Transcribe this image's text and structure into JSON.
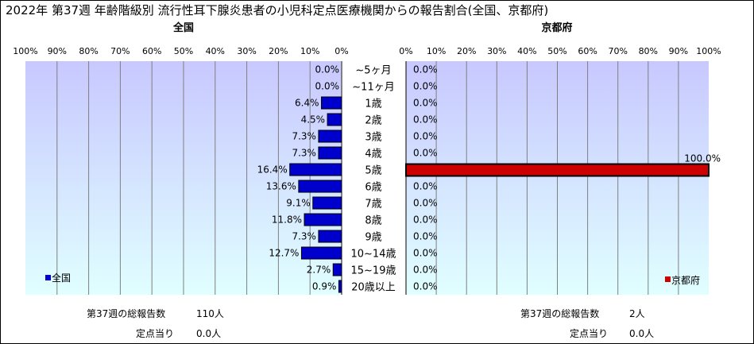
{
  "title": "2022年 第37週 年齢階級別 流行性耳下腺炎患者の小児科定点医療機関からの報告割合(全国、京都府)",
  "colors": {
    "national": "#0000CC",
    "kyoto": "#CC0000",
    "grid": "#7F7F7F"
  },
  "chart_data": [
    {
      "type": "bar",
      "title": "全国",
      "orientation": "horizontal",
      "direction": "right-to-left",
      "categories": [
        "~5ヶ月",
        "~11ヶ月",
        "1歳",
        "2歳",
        "3歳",
        "4歳",
        "5歳",
        "6歳",
        "7歳",
        "8歳",
        "9歳",
        "10~14歳",
        "15~19歳",
        "20歳以上"
      ],
      "series": [
        {
          "name": "全国",
          "values": [
            0.0,
            0.0,
            6.4,
            4.5,
            7.3,
            7.3,
            16.4,
            13.6,
            9.1,
            11.8,
            7.3,
            12.7,
            2.7,
            0.9
          ]
        }
      ],
      "data_labels": [
        "0.0%",
        "0.0%",
        "6.4%",
        "4.5%",
        "7.3%",
        "7.3%",
        "16.4%",
        "13.6%",
        "9.1%",
        "11.8%",
        "7.3%",
        "12.7%",
        "2.7%",
        "0.9%"
      ],
      "xlim": [
        0,
        100
      ],
      "x_ticks": [
        "100%",
        "90%",
        "80%",
        "70%",
        "60%",
        "50%",
        "40%",
        "30%",
        "20%",
        "10%",
        "0%"
      ],
      "grid": true,
      "legend": "bottom-left"
    },
    {
      "type": "bar",
      "title": "京都府",
      "orientation": "horizontal",
      "direction": "left-to-right",
      "categories": [
        "~5ヶ月",
        "~11ヶ月",
        "1歳",
        "2歳",
        "3歳",
        "4歳",
        "5歳",
        "6歳",
        "7歳",
        "8歳",
        "9歳",
        "10~14歳",
        "15~19歳",
        "20歳以上"
      ],
      "series": [
        {
          "name": "京都府",
          "values": [
            0,
            0,
            0,
            0,
            0,
            0,
            100,
            0,
            0,
            0,
            0,
            0,
            0,
            0
          ]
        }
      ],
      "data_labels": [
        "0.0%",
        "0.0%",
        "0.0%",
        "0.0%",
        "0.0%",
        "0.0%",
        "100.0%",
        "0.0%",
        "0.0%",
        "0.0%",
        "0.0%",
        "0.0%",
        "0.0%",
        "0.0%"
      ],
      "xlim": [
        0,
        100
      ],
      "x_ticks": [
        "0%",
        "10%",
        "20%",
        "30%",
        "40%",
        "50%",
        "60%",
        "70%",
        "80%",
        "90%",
        "100%"
      ],
      "grid": true,
      "legend": "bottom-right"
    }
  ],
  "footer": {
    "national": {
      "total_label": "第37週の総報告数",
      "total_value": "110人",
      "per_label": "定点当り",
      "per_value": "0.0人"
    },
    "kyoto": {
      "total_label": "第37週の総報告数",
      "total_value": "2人",
      "per_label": "定点当り",
      "per_value": "0.0人"
    }
  }
}
